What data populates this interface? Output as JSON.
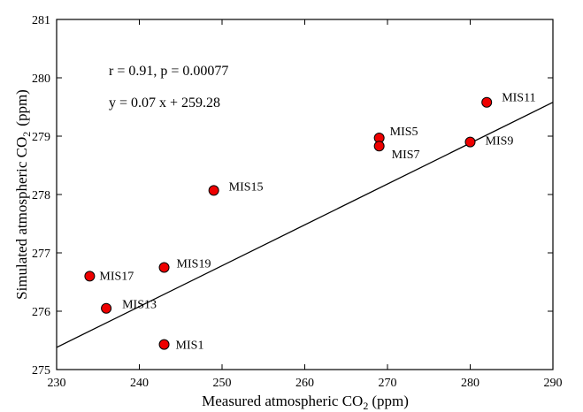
{
  "chart_data": {
    "type": "scatter",
    "xlabel": "Measured atmospheric CO",
    "xlabel_sub": "2",
    "xlabel_unit": "(ppm)",
    "ylabel": "Simulated atmospheric CO",
    "ylabel_sub": "2",
    "ylabel_unit": "(ppm)",
    "xlim": [
      230,
      290
    ],
    "ylim": [
      275,
      281
    ],
    "xticks": [
      230,
      240,
      250,
      260,
      270,
      280,
      290
    ],
    "yticks": [
      275,
      276,
      277,
      278,
      279,
      280,
      281
    ],
    "grid": false,
    "point_color": "#ee0000",
    "points": [
      {
        "label": "MIS1",
        "x": 243,
        "y": 275.43
      },
      {
        "label": "MIS5",
        "x": 269,
        "y": 278.97
      },
      {
        "label": "MIS7",
        "x": 269,
        "y": 278.83
      },
      {
        "label": "MIS9",
        "x": 280,
        "y": 278.9
      },
      {
        "label": "MIS11",
        "x": 282,
        "y": 279.58
      },
      {
        "label": "MIS13",
        "x": 236,
        "y": 276.05
      },
      {
        "label": "MIS15",
        "x": 249,
        "y": 278.07
      },
      {
        "label": "MIS17",
        "x": 234,
        "y": 276.6
      },
      {
        "label": "MIS19",
        "x": 243,
        "y": 276.75
      }
    ],
    "fit": {
      "slope": 0.07,
      "intercept": 259.28
    },
    "annotations": {
      "stats": "r = 0.91, p = 0.00077",
      "equation": "y  =  0.07 x + 259.28"
    }
  }
}
